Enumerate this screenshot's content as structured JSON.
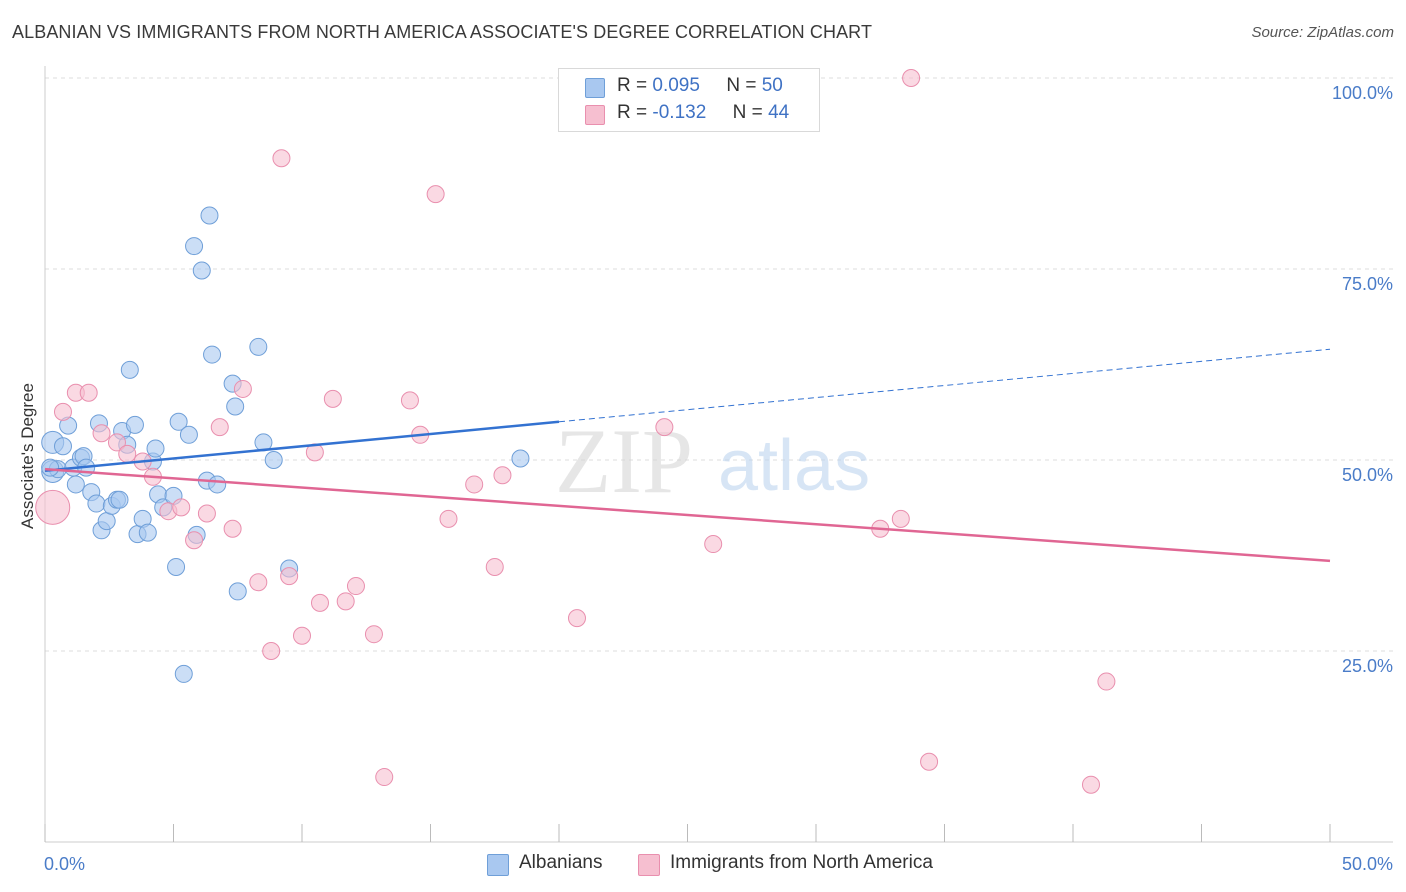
{
  "title": "ALBANIAN VS IMMIGRANTS FROM NORTH AMERICA ASSOCIATE'S DEGREE CORRELATION CHART",
  "source": "Source: ZipAtlas.com",
  "watermark": {
    "zip": "ZIP",
    "atlas": "atlas"
  },
  "legend": {
    "albanians": {
      "r_label": "R =",
      "r_value": "0.095",
      "n_label": "N =",
      "n_value": "50"
    },
    "immigrants": {
      "r_label": "R =",
      "r_value": "-0.132",
      "n_label": "N =",
      "n_value": "44"
    }
  },
  "bottom_legend": {
    "albanians": "Albanians",
    "immigrants": "Immigrants from North America"
  },
  "colors": {
    "albanians_fill": "#a9c8f0",
    "albanians_stroke": "#6f9fd8",
    "albanians_line": "#3372d1",
    "immigrants_fill": "#f6bfd0",
    "immigrants_stroke": "#e98fae",
    "immigrants_line": "#e06693",
    "tick_label": "#4a7cc8",
    "grid": "#dddddd",
    "axis": "#cccccc"
  },
  "chart_data": {
    "type": "scatter",
    "title": "ALBANIAN VS IMMIGRANTS FROM NORTH AMERICA ASSOCIATE'S DEGREE CORRELATION CHART",
    "xlabel": "",
    "ylabel": "Associate's Degree",
    "xlim": [
      0,
      50
    ],
    "ylim": [
      0,
      105
    ],
    "x_tick_labels": [
      "0.0%",
      "50.0%"
    ],
    "y_ticks": [
      25,
      50,
      75,
      100
    ],
    "y_tick_labels": [
      "25.0%",
      "50.0%",
      "75.0%",
      "100.0%"
    ],
    "grid": true,
    "series": [
      {
        "name": "Albanians",
        "points": [
          [
            0.3,
            48.5
          ],
          [
            0.3,
            52.3
          ],
          [
            0.5,
            48.8
          ],
          [
            0.7,
            51.8
          ],
          [
            0.9,
            54.5
          ],
          [
            1.1,
            49.0
          ],
          [
            1.2,
            46.8
          ],
          [
            1.4,
            50.3
          ],
          [
            1.5,
            50.5
          ],
          [
            1.6,
            49.0
          ],
          [
            1.8,
            45.8
          ],
          [
            2.0,
            44.3
          ],
          [
            2.1,
            54.8
          ],
          [
            2.2,
            40.8
          ],
          [
            2.4,
            42.0
          ],
          [
            2.6,
            44.0
          ],
          [
            2.8,
            44.8
          ],
          [
            2.9,
            44.8
          ],
          [
            3.0,
            53.8
          ],
          [
            3.2,
            52.0
          ],
          [
            3.3,
            61.8
          ],
          [
            3.5,
            54.6
          ],
          [
            3.6,
            40.3
          ],
          [
            3.8,
            42.3
          ],
          [
            4.0,
            40.5
          ],
          [
            4.2,
            49.8
          ],
          [
            4.3,
            51.5
          ],
          [
            4.4,
            45.5
          ],
          [
            4.6,
            43.8
          ],
          [
            5.0,
            45.3
          ],
          [
            5.1,
            36.0
          ],
          [
            5.2,
            55.0
          ],
          [
            5.4,
            22.0
          ],
          [
            5.6,
            53.3
          ],
          [
            5.8,
            78.0
          ],
          [
            5.9,
            40.2
          ],
          [
            6.1,
            74.8
          ],
          [
            6.3,
            47.3
          ],
          [
            6.4,
            82.0
          ],
          [
            6.5,
            63.8
          ],
          [
            6.7,
            46.8
          ],
          [
            7.3,
            60.0
          ],
          [
            7.4,
            57.0
          ],
          [
            7.5,
            32.8
          ],
          [
            8.3,
            64.8
          ],
          [
            8.5,
            52.3
          ],
          [
            8.9,
            50.0
          ],
          [
            9.5,
            35.8
          ],
          [
            18.5,
            50.2
          ],
          [
            0.2,
            49.0
          ]
        ],
        "trend": {
          "x": [
            0,
            20
          ],
          "y": [
            48.6,
            55.0
          ],
          "dashed_extension": {
            "x": [
              20,
              50
            ],
            "y": [
              55.0,
              64.5
            ]
          }
        }
      },
      {
        "name": "Immigrants from North America",
        "points": [
          [
            0.3,
            43.8
          ],
          [
            0.7,
            56.3
          ],
          [
            1.2,
            58.8
          ],
          [
            1.7,
            58.8
          ],
          [
            2.2,
            53.5
          ],
          [
            2.8,
            52.3
          ],
          [
            3.2,
            50.8
          ],
          [
            3.8,
            49.8
          ],
          [
            4.2,
            47.8
          ],
          [
            4.8,
            43.3
          ],
          [
            5.3,
            43.8
          ],
          [
            5.8,
            39.5
          ],
          [
            6.3,
            43.0
          ],
          [
            6.8,
            54.3
          ],
          [
            7.3,
            41.0
          ],
          [
            7.7,
            59.3
          ],
          [
            8.3,
            34.0
          ],
          [
            8.8,
            25.0
          ],
          [
            9.2,
            89.5
          ],
          [
            9.5,
            34.8
          ],
          [
            10.0,
            27.0
          ],
          [
            10.7,
            31.3
          ],
          [
            11.2,
            58.0
          ],
          [
            11.7,
            31.5
          ],
          [
            12.1,
            33.5
          ],
          [
            12.8,
            27.2
          ],
          [
            13.2,
            8.5
          ],
          [
            14.2,
            57.8
          ],
          [
            14.6,
            53.3
          ],
          [
            15.2,
            84.8
          ],
          [
            15.7,
            42.3
          ],
          [
            16.7,
            46.8
          ],
          [
            17.5,
            36.0
          ],
          [
            17.8,
            48.0
          ],
          [
            20.7,
            29.3
          ],
          [
            24.1,
            54.3
          ],
          [
            26.0,
            39.0
          ],
          [
            32.5,
            41.0
          ],
          [
            33.3,
            42.3
          ],
          [
            33.7,
            100.0
          ],
          [
            34.4,
            10.5
          ],
          [
            40.7,
            7.5
          ],
          [
            41.3,
            21.0
          ],
          [
            10.5,
            51.0
          ]
        ],
        "trend": {
          "x": [
            0,
            50
          ],
          "y": [
            48.8,
            36.8
          ]
        }
      }
    ]
  }
}
